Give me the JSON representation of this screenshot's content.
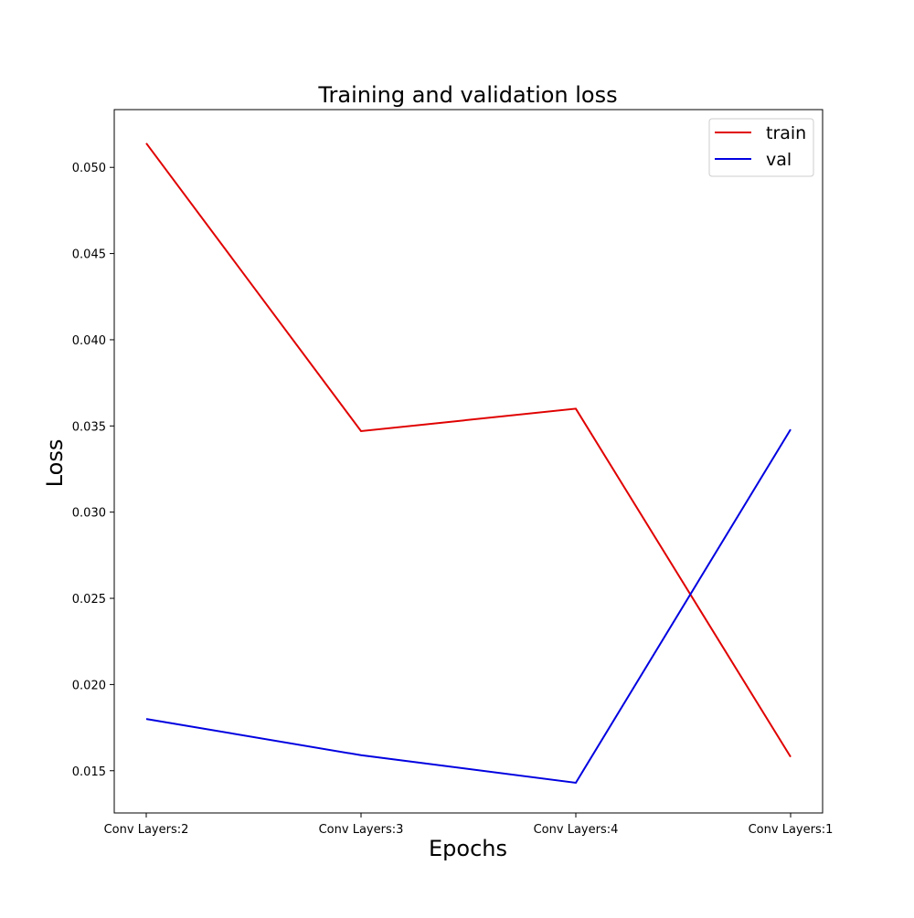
{
  "chart_data": {
    "type": "line",
    "title": "Training and validation loss",
    "xlabel": "Epochs",
    "ylabel": "Loss",
    "categories": [
      "Conv Layers:2",
      "Conv Layers:3",
      "Conv Layers:4",
      "Conv Layers:1"
    ],
    "series": [
      {
        "name": "train",
        "color": "#e00000",
        "values": [
          0.0514,
          0.0347,
          0.036,
          0.0158
        ]
      },
      {
        "name": "val",
        "color": "#0000e0",
        "values": [
          0.018,
          0.0159,
          0.0143,
          0.0348
        ]
      }
    ],
    "ylim": [
      0.01255,
      0.05335
    ],
    "yticks": [
      0.015,
      0.02,
      0.025,
      0.03,
      0.035,
      0.04,
      0.045,
      0.05
    ],
    "ytick_labels": [
      "0.015",
      "0.020",
      "0.025",
      "0.030",
      "0.035",
      "0.040",
      "0.045",
      "0.050"
    ],
    "grid": false,
    "legend_position": "top-right"
  }
}
